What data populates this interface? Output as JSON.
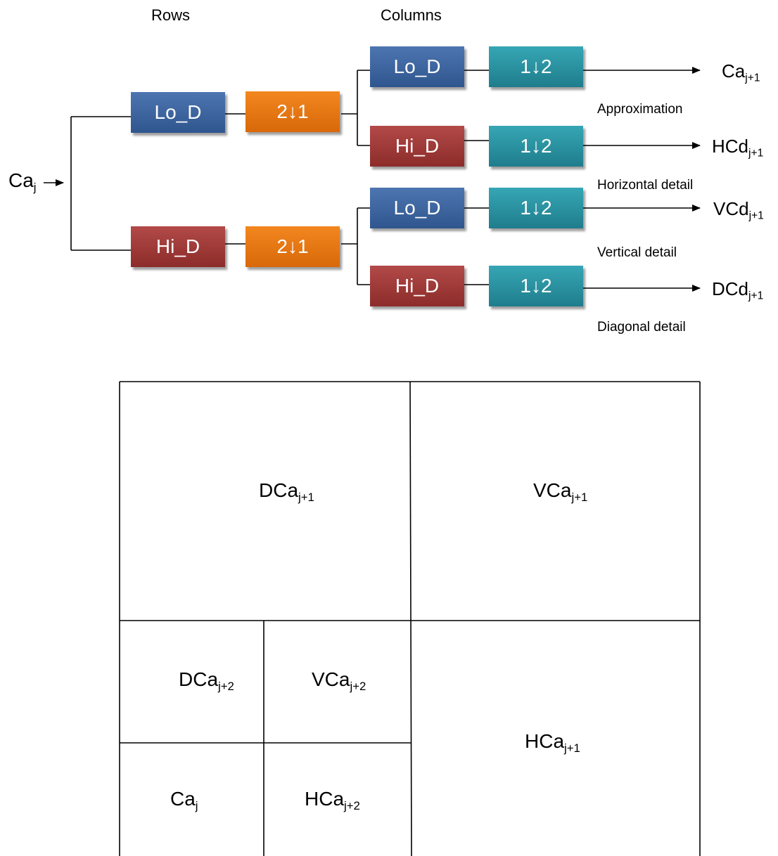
{
  "headers": {
    "rows": "Rows",
    "columns": "Columns"
  },
  "input": {
    "base": "Ca",
    "sub": "j"
  },
  "boxes": {
    "row_lo": "Lo_D",
    "row_hi": "Hi_D",
    "row_down_top": "2↓1",
    "row_down_bottom": "2↓1",
    "col_lo_1": "Lo_D",
    "col_hi_1": "Hi_D",
    "col_lo_2": "Lo_D",
    "col_hi_2": "Hi_D",
    "col_down_1": "1↓2",
    "col_down_2": "1↓2",
    "col_down_3": "1↓2",
    "col_down_4": "1↓2"
  },
  "outputs": [
    {
      "base": "Ca",
      "sub": "j+1",
      "desc": "Approximation"
    },
    {
      "base": "HCd",
      "sub": "j+1",
      "desc": "Horizontal detail"
    },
    {
      "base": "VCd",
      "sub": "j+1",
      "desc": "Vertical detail"
    },
    {
      "base": "DCd",
      "sub": "j+1",
      "desc": "Diagonal detail"
    }
  ],
  "grid": {
    "top_left": {
      "base": "DCa",
      "sub": "j+1"
    },
    "top_right": {
      "base": "VCa",
      "sub": "j+1"
    },
    "mid_left": {
      "base": "DCa",
      "sub": "j+2"
    },
    "mid_mid": {
      "base": "VCa",
      "sub": "j+2"
    },
    "bottom_left": {
      "base": "Ca",
      "sub": "j"
    },
    "bottom_mid": {
      "base": "HCa",
      "sub": "j+2"
    },
    "bottom_right": {
      "base": "HCa",
      "sub": "j+1"
    }
  },
  "colors": {
    "lowpass": "#3f679f",
    "highpass": "#9d3937",
    "row_downsample": "#e5770f",
    "column_downsample": "#2a8f9e"
  }
}
